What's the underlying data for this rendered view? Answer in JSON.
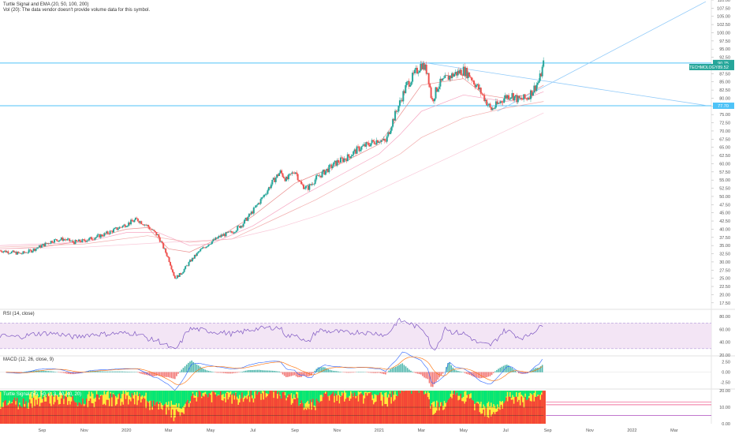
{
  "header": {
    "line1": "Turtle Signal and EMA (20, 50, 100, 200)",
    "line2": "Vol (20): The data vendor doesn't provide volume data for this symbol."
  },
  "chart_data": {
    "type": "candlestick",
    "price_axis": {
      "ylim": [
        16,
        110
      ],
      "ticks": [
        "110.00",
        "107.50",
        "105.00",
        "102.50",
        "100.00",
        "97.50",
        "95.00",
        "92.50",
        "90.00",
        "87.50",
        "85.00",
        "82.50",
        "80.00",
        "77.50",
        "75.00",
        "72.50",
        "70.00",
        "67.50",
        "65.00",
        "62.50",
        "60.00",
        "57.50",
        "55.00",
        "52.50",
        "50.00",
        "47.50",
        "45.00",
        "42.50",
        "40.00",
        "37.50",
        "35.00",
        "32.50",
        "30.00",
        "27.50",
        "25.00",
        "22.50",
        "20.00",
        "17.50"
      ],
      "ticks_values": [
        110,
        107.5,
        105,
        102.5,
        100,
        97.5,
        95,
        92.5,
        90,
        87.5,
        85,
        82.5,
        80,
        77.5,
        75,
        72.5,
        70,
        67.5,
        65,
        62.5,
        60,
        57.5,
        55,
        52.5,
        50,
        47.5,
        45,
        42.5,
        40,
        37.5,
        35,
        32.5,
        30,
        27.5,
        25,
        22.5,
        20,
        17.5
      ],
      "labels": [
        {
          "text": "90.75",
          "value": 90.75,
          "color": "#26a69a"
        },
        {
          "text": "89.52",
          "value": 89.52,
          "color": "#26a69a"
        },
        {
          "text": "77.70",
          "value": 77.7,
          "color": "#4fc3f7"
        },
        {
          "text": "TECHMOLOGY",
          "value": 89.52,
          "color": "#26a69a"
        }
      ]
    },
    "horizontal_lines": [
      90.75,
      77.7
    ],
    "x_axis": {
      "labels": [
        "Sep",
        "Nov",
        "2020",
        "Mar",
        "May",
        "Jul",
        "Sep",
        "Nov",
        "2021",
        "Mar",
        "May",
        "Jul",
        "Sep",
        "Nov",
        "2022",
        "Mar"
      ],
      "positions_month_index": [
        2,
        4,
        6,
        8,
        10,
        12,
        14,
        16,
        18,
        20,
        22,
        24,
        26,
        28,
        30,
        32
      ]
    },
    "price_path": [
      [
        0,
        33.5
      ],
      [
        0.5,
        33.0
      ],
      [
        1,
        32.5
      ],
      [
        1.5,
        33.5
      ],
      [
        2,
        35.0
      ],
      [
        2.5,
        36.5
      ],
      [
        3,
        37.0
      ],
      [
        3.5,
        36.0
      ],
      [
        4,
        36.5
      ],
      [
        4.5,
        37.5
      ],
      [
        5,
        38.5
      ],
      [
        5.5,
        40.0
      ],
      [
        6,
        41.5
      ],
      [
        6.5,
        43.0
      ],
      [
        7,
        41.0
      ],
      [
        7.5,
        38.0
      ],
      [
        8,
        31.0
      ],
      [
        8.3,
        25.0
      ],
      [
        8.6,
        26.5
      ],
      [
        9,
        30.0
      ],
      [
        9.5,
        33.5
      ],
      [
        10,
        36.0
      ],
      [
        10.5,
        38.0
      ],
      [
        11,
        39.0
      ],
      [
        11.5,
        41.5
      ],
      [
        12,
        45.5
      ],
      [
        12.5,
        50.0
      ],
      [
        13,
        55.0
      ],
      [
        13.3,
        57.5
      ],
      [
        13.6,
        55.0
      ],
      [
        14,
        58.0
      ],
      [
        14.3,
        53.5
      ],
      [
        14.6,
        52.5
      ],
      [
        15,
        55.5
      ],
      [
        15.5,
        58.0
      ],
      [
        16,
        60.5
      ],
      [
        16.5,
        62.0
      ],
      [
        17,
        64.5
      ],
      [
        17.5,
        66.0
      ],
      [
        18,
        67.5
      ],
      [
        18.3,
        66.5
      ],
      [
        18.6,
        72.5
      ],
      [
        19,
        79.0
      ],
      [
        19.3,
        84.0
      ],
      [
        19.6,
        86.5
      ],
      [
        20,
        90.5
      ],
      [
        20.3,
        88.0
      ],
      [
        20.5,
        79.0
      ],
      [
        20.8,
        84.0
      ],
      [
        21,
        85.0
      ],
      [
        21.3,
        86.5
      ],
      [
        21.6,
        87.5
      ],
      [
        22,
        88.5
      ],
      [
        22.3,
        87.0
      ],
      [
        22.6,
        84.0
      ],
      [
        23,
        80.0
      ],
      [
        23.3,
        76.5
      ],
      [
        23.6,
        78.0
      ],
      [
        24,
        80.5
      ],
      [
        24.3,
        81.0
      ],
      [
        24.6,
        79.5
      ],
      [
        25,
        80.0
      ],
      [
        25.3,
        82.5
      ],
      [
        25.6,
        85.5
      ],
      [
        25.8,
        90.5
      ]
    ],
    "ema_series": [
      {
        "color": "#e57373",
        "points": [
          [
            0,
            34
          ],
          [
            2,
            34.5
          ],
          [
            4,
            36.5
          ],
          [
            6,
            40
          ],
          [
            7,
            40.5
          ],
          [
            8,
            34
          ],
          [
            9,
            33
          ],
          [
            10,
            36
          ],
          [
            12,
            44
          ],
          [
            14,
            54
          ],
          [
            16,
            59.5
          ],
          [
            18,
            66
          ],
          [
            19,
            75
          ],
          [
            20,
            84
          ],
          [
            21,
            85
          ],
          [
            22,
            86
          ],
          [
            23,
            81
          ],
          [
            24,
            80
          ],
          [
            25,
            81
          ],
          [
            25.8,
            84
          ]
        ]
      },
      {
        "color": "#f48fb1",
        "points": [
          [
            0,
            35
          ],
          [
            4,
            36
          ],
          [
            6,
            39
          ],
          [
            7.5,
            39
          ],
          [
            9,
            35
          ],
          [
            10,
            35.5
          ],
          [
            12,
            41
          ],
          [
            14,
            49
          ],
          [
            16,
            56
          ],
          [
            18,
            63
          ],
          [
            19,
            69
          ],
          [
            20,
            76
          ],
          [
            22,
            81
          ],
          [
            23,
            80
          ],
          [
            24,
            79
          ],
          [
            25,
            80
          ],
          [
            25.8,
            82
          ]
        ]
      },
      {
        "color": "#ef9a9a",
        "points": [
          [
            0,
            34.5
          ],
          [
            4,
            35.5
          ],
          [
            7,
            38
          ],
          [
            9,
            36
          ],
          [
            11,
            37
          ],
          [
            13,
            43
          ],
          [
            15,
            49
          ],
          [
            17,
            56
          ],
          [
            19,
            63
          ],
          [
            20,
            68
          ],
          [
            22,
            74
          ],
          [
            24,
            77
          ],
          [
            25.8,
            79
          ]
        ]
      },
      {
        "color": "#f8bbd0",
        "points": [
          [
            0,
            34
          ],
          [
            4,
            34.5
          ],
          [
            8,
            36
          ],
          [
            11,
            37
          ],
          [
            13,
            40
          ],
          [
            15,
            44
          ],
          [
            17,
            49
          ],
          [
            19,
            55
          ],
          [
            21,
            61
          ],
          [
            23,
            67
          ],
          [
            25.8,
            75.5
          ]
        ]
      }
    ],
    "trendlines": [
      {
        "color": "#90caf9",
        "from": [
          20.2,
          90.8
        ],
        "to": [
          33.5,
          77.8
        ]
      },
      {
        "color": "#90caf9",
        "from": [
          23.6,
          76.0
        ],
        "to": [
          33.5,
          109.5
        ]
      }
    ],
    "rsi": {
      "title": "RSI (14, close)",
      "ylim": [
        20,
        90
      ],
      "band": [
        30,
        70
      ],
      "ticks": [
        "80.00",
        "60.00",
        "40.00",
        "20.00"
      ],
      "ticks_values": [
        80,
        60,
        40,
        20
      ]
    },
    "macd": {
      "title": "MACD (12, 26, close, 9)",
      "ylim": [
        -4,
        4
      ],
      "ticks": [
        "2.50",
        "0.00",
        "-2.50"
      ],
      "ticks_values": [
        2.5,
        0,
        -2.5
      ]
    },
    "turtle": {
      "title": "Turtle Signal (50, 50, 2, 3, 40, 40, 20)",
      "ylim": [
        0,
        21
      ],
      "ticks": [
        "20.00",
        "10.00",
        "0.00"
      ],
      "ticks_values": [
        20,
        10,
        0
      ]
    }
  }
}
